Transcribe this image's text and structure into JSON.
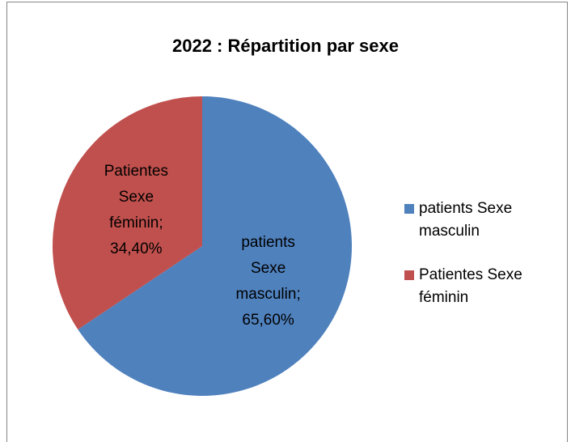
{
  "chart_data": {
    "type": "pie",
    "title": "2022 : Répartition par sexe",
    "categories": [
      "patients Sexe masculin",
      "Patientes Sexe féminin"
    ],
    "values": [
      65.6,
      34.4
    ],
    "value_labels": [
      "65,60%",
      "34,40%"
    ],
    "label_separator": ";",
    "colors": [
      "#4f81bd",
      "#c0504d"
    ],
    "legend": "right"
  }
}
